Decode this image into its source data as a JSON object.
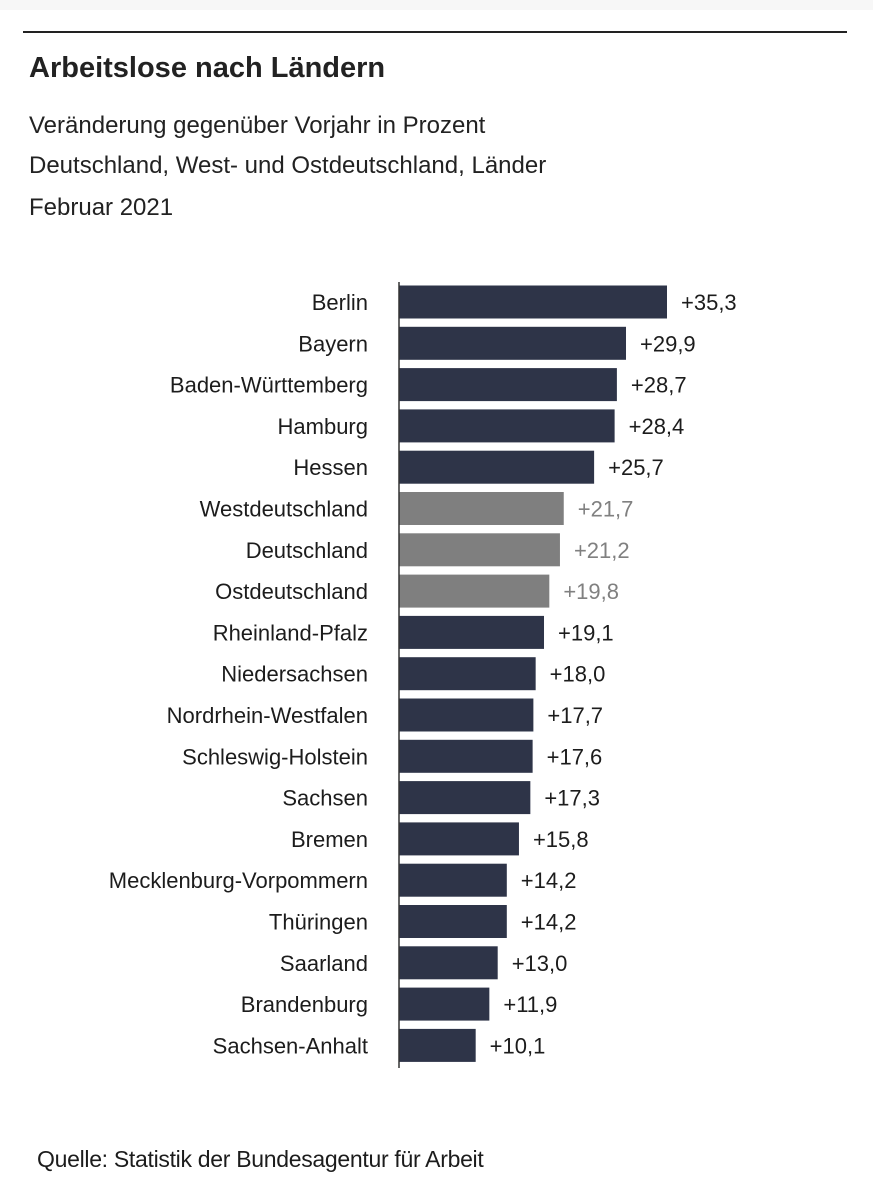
{
  "header": {
    "title": "Arbeitslose nach Ländern",
    "subtitle_lines": [
      "Veränderung gegenüber Vorjahr in Prozent",
      "Deutschland, West- und Ostdeutschland, Länder",
      "Februar 2021"
    ]
  },
  "footer": {
    "source": "Quelle: Statistik der Bundesagentur für Arbeit"
  },
  "colors": {
    "bar_primary": "#2e3448",
    "bar_aggregate": "#7f7f7f",
    "label_primary": "#1c1c1c",
    "label_aggregate": "#808080",
    "axis": "#333333"
  },
  "chart_data": {
    "type": "bar",
    "orientation": "horizontal",
    "categories": [
      "Berlin",
      "Bayern",
      "Baden-Württemberg",
      "Hamburg",
      "Hessen",
      "Westdeutschland",
      "Deutschland",
      "Ostdeutschland",
      "Rheinland-Pfalz",
      "Niedersachsen",
      "Nordrhein-Westfalen",
      "Schleswig-Holstein",
      "Sachsen",
      "Bremen",
      "Mecklenburg-Vorpommern",
      "Thüringen",
      "Saarland",
      "Brandenburg",
      "Sachsen-Anhalt"
    ],
    "values": [
      35.3,
      29.9,
      28.7,
      28.4,
      25.7,
      21.7,
      21.2,
      19.8,
      19.1,
      18.0,
      17.7,
      17.6,
      17.3,
      15.8,
      14.2,
      14.2,
      13.0,
      11.9,
      10.1
    ],
    "value_labels": [
      "+35,3",
      "+29,9",
      "+28,7",
      "+28,4",
      "+25,7",
      "+21,7",
      "+21,2",
      "+19,8",
      "+19,1",
      "+18,0",
      "+17,7",
      "+17,6",
      "+17,3",
      "+15,8",
      "+14,2",
      "+14,2",
      "+13,0",
      "+11,9",
      "+10,1"
    ],
    "highlighted_aggregates": [
      "Westdeutschland",
      "Deutschland",
      "Ostdeutschland"
    ],
    "title": "Arbeitslose nach Ländern",
    "xlim": [
      0,
      35.3
    ],
    "grid": false,
    "legend": "none"
  }
}
